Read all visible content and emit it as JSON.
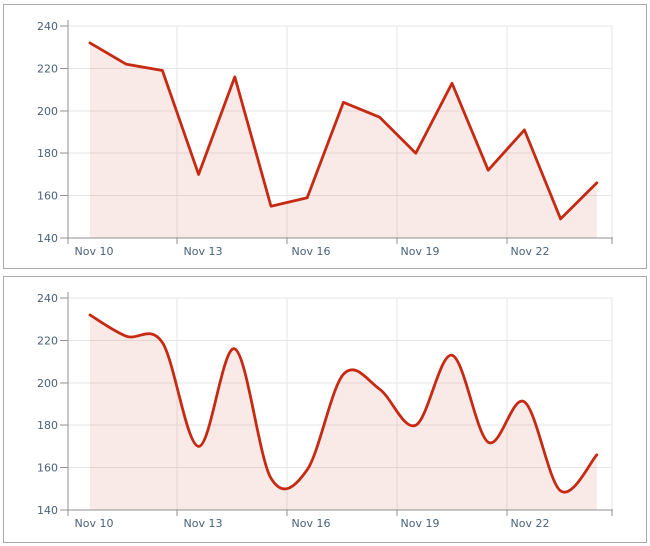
{
  "chart_data": [
    {
      "type": "area",
      "interpolation": "linear",
      "title": "",
      "xlabel": "",
      "ylabel": "",
      "x": [
        "Nov 10",
        "Nov 11",
        "Nov 12",
        "Nov 13",
        "Nov 14",
        "Nov 15",
        "Nov 16",
        "Nov 17",
        "Nov 18",
        "Nov 19",
        "Nov 20",
        "Nov 21",
        "Nov 22",
        "Nov 23",
        "Nov 24"
      ],
      "values": [
        232,
        222,
        219,
        170,
        216,
        155,
        159,
        204,
        197,
        180,
        213,
        172,
        191,
        149,
        166
      ],
      "x_tick_labels": [
        "Nov 10",
        "Nov 13",
        "Nov 16",
        "Nov 19",
        "Nov 22"
      ],
      "y_tick_labels": [
        240,
        220,
        200,
        180,
        160,
        140
      ],
      "ylim": [
        140,
        240
      ],
      "grid": true,
      "legend": false
    },
    {
      "type": "area",
      "interpolation": "spline",
      "title": "",
      "xlabel": "",
      "ylabel": "",
      "x": [
        "Nov 10",
        "Nov 11",
        "Nov 12",
        "Nov 13",
        "Nov 14",
        "Nov 15",
        "Nov 16",
        "Nov 17",
        "Nov 18",
        "Nov 19",
        "Nov 20",
        "Nov 21",
        "Nov 22",
        "Nov 23",
        "Nov 24"
      ],
      "values": [
        232,
        222,
        219,
        170,
        216,
        155,
        159,
        204,
        197,
        180,
        213,
        172,
        191,
        149,
        166
      ],
      "x_tick_labels": [
        "Nov 10",
        "Nov 13",
        "Nov 16",
        "Nov 19",
        "Nov 22"
      ],
      "y_tick_labels": [
        240,
        220,
        200,
        180,
        160,
        140
      ],
      "ylim": [
        140,
        240
      ],
      "grid": true,
      "legend": false
    }
  ],
  "colors": {
    "line": "#c62a12",
    "fill": "rgba(198,42,18,0.10)",
    "gridline": "#e6e6e6",
    "axis": "#919191",
    "label": "#4a627a",
    "panel_border": "#a9a9a9",
    "background": "#ffffff"
  }
}
